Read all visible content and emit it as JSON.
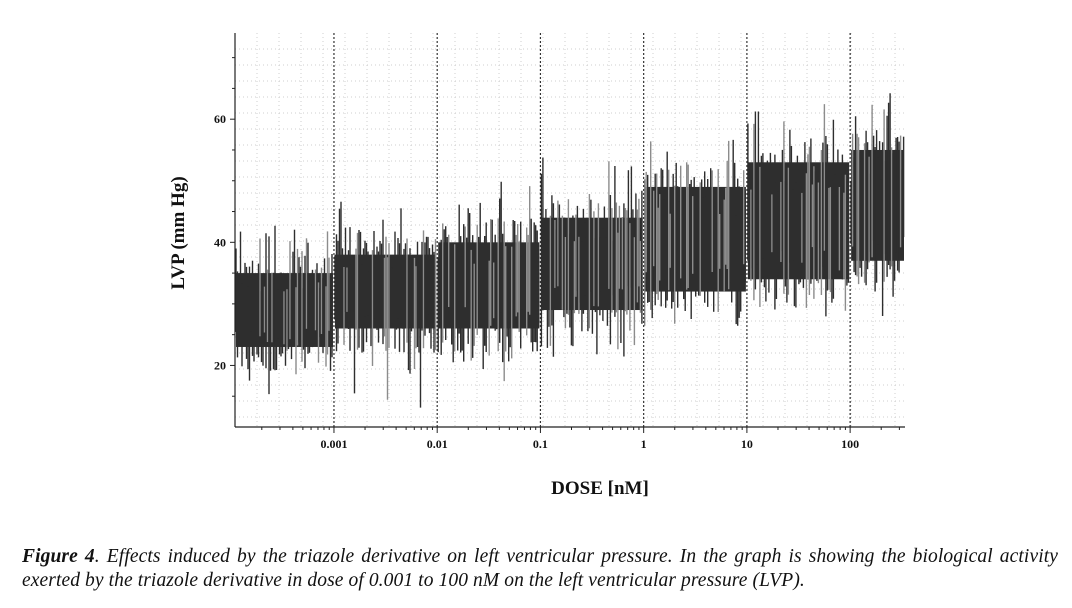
{
  "chart_data": {
    "type": "line",
    "xlabel": "DOSE [nM]",
    "ylabel": "LVP (mm Hg)",
    "x_scale": "log",
    "x_ticks": [
      "0.001",
      "0.01",
      "0.1",
      "1",
      "10",
      "100"
    ],
    "x_tick_values": [
      0.001,
      0.01,
      0.1,
      1,
      10,
      100
    ],
    "y_ticks": [
      "20",
      "40",
      "60"
    ],
    "y_tick_values": [
      20,
      40,
      60
    ],
    "ylim": [
      10,
      74
    ],
    "xlim": [
      0.00011,
      340
    ],
    "grid": true,
    "dose_markers": [
      0.001,
      0.01,
      0.1,
      1,
      10,
      100
    ],
    "series_colors": [
      "#2e2e2e",
      "#8c8c8c"
    ],
    "segments": [
      {
        "dose_from": 0.00011,
        "dose_to": 0.001,
        "min": 19,
        "max": 39,
        "peak_low": 15,
        "peak_high": 43
      },
      {
        "dose_from": 0.001,
        "dose_to": 0.01,
        "min": 22,
        "max": 42,
        "peak_low": 13,
        "peak_high": 47
      },
      {
        "dose_from": 0.01,
        "dose_to": 0.1,
        "min": 22,
        "max": 44,
        "peak_low": 17,
        "peak_high": 51
      },
      {
        "dose_from": 0.1,
        "dose_to": 1,
        "min": 25,
        "max": 48,
        "peak_low": 21,
        "peak_high": 54
      },
      {
        "dose_from": 1,
        "dose_to": 10,
        "min": 28,
        "max": 53,
        "peak_low": 26,
        "peak_high": 59
      },
      {
        "dose_from": 10,
        "dose_to": 100,
        "min": 30,
        "max": 57,
        "peak_low": 27,
        "peak_high": 64
      },
      {
        "dose_from": 100,
        "dose_to": 340,
        "min": 33,
        "max": 59,
        "peak_low": 28,
        "peak_high": 65
      }
    ]
  },
  "caption": {
    "label": "Figure 4",
    "text": ". Effects induced by the triazole derivative on left ventricular pressure. In the graph is showing the biological activity exerted by the triazole derivative in dose of 0.001 to 100 nM on the left ventricular pressure (LVP)."
  }
}
